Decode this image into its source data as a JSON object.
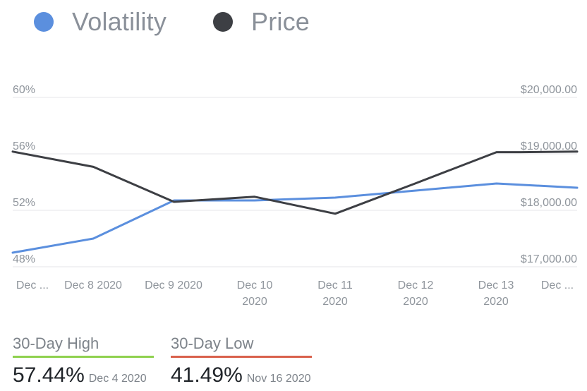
{
  "chart_data": {
    "type": "line",
    "categories": [
      "Dec ...",
      "Dec 8 2020",
      "Dec 9 2020",
      "Dec 10 2020",
      "Dec 11 2020",
      "Dec 12 2020",
      "Dec 13 2020",
      "Dec ..."
    ],
    "x_tick_labels": [
      [
        "Dec ..."
      ],
      [
        "Dec 8 2020"
      ],
      [
        "Dec 9 2020"
      ],
      [
        "Dec 10",
        "2020"
      ],
      [
        "Dec 11",
        "2020"
      ],
      [
        "Dec 12",
        "2020"
      ],
      [
        "Dec 13",
        "2020"
      ],
      [
        "Dec ..."
      ]
    ],
    "legend_placement": "top-left",
    "grid": true,
    "y_left": {
      "ticks": [
        48,
        52,
        56,
        60
      ],
      "tick_labels": [
        "48%",
        "52%",
        "56%",
        "60%"
      ],
      "range": [
        48,
        60
      ]
    },
    "y_right": {
      "ticks": [
        17000,
        18000,
        19000,
        20000
      ],
      "tick_labels": [
        "$17,000.00",
        "$18,000.00",
        "$19,000.00",
        "$20,000.00"
      ],
      "range": [
        17000,
        20000
      ]
    },
    "series": [
      {
        "name": "Volatility",
        "axis": "left",
        "color": "#5b8fde",
        "x": [
          0,
          1,
          2,
          3,
          4,
          5,
          6,
          7
        ],
        "values": [
          49.0,
          50.0,
          52.7,
          52.7,
          52.9,
          53.4,
          53.9,
          53.6
        ]
      },
      {
        "name": "Price",
        "axis": "right",
        "color": "#3d3f44",
        "x": [
          0,
          1,
          2,
          3,
          4,
          5,
          6,
          6.3,
          7
        ],
        "values": [
          19040,
          18770,
          18150,
          18240,
          17940,
          18480,
          19030,
          19030,
          19040
        ]
      }
    ]
  },
  "stats": {
    "high": {
      "label": "30-Day High",
      "value": "57.44%",
      "date": "Dec 4 2020",
      "color": "#8fd14f"
    },
    "low": {
      "label": "30-Day Low",
      "value": "41.49%",
      "date": "Nov 16 2020",
      "color": "#d9614c"
    }
  }
}
